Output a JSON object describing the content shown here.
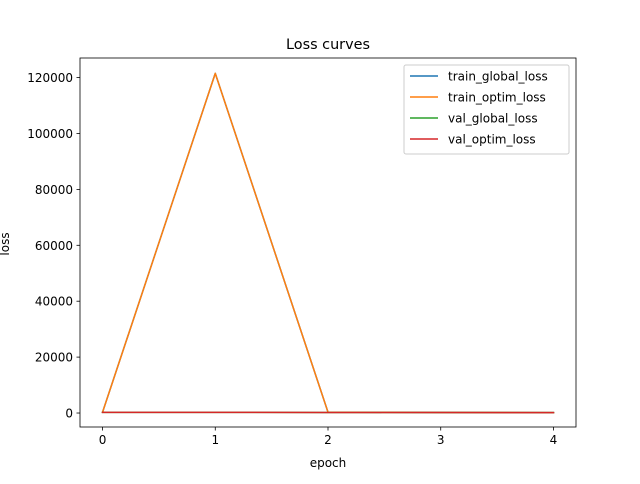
{
  "chart_data": {
    "type": "line",
    "title": "Loss curves",
    "xlabel": "epoch",
    "ylabel": "loss",
    "x": [
      0,
      1,
      2,
      3,
      4
    ],
    "xlim": [
      -0.2,
      4.2
    ],
    "ylim": [
      -5000,
      127000
    ],
    "xticks": [
      0,
      1,
      2,
      3,
      4
    ],
    "yticks": [
      0,
      20000,
      40000,
      60000,
      80000,
      100000,
      120000
    ],
    "grid": false,
    "legend_position": "top-right",
    "series": [
      {
        "name": "train_global_loss",
        "color": "#1f77b4",
        "values": [
          300,
          121500,
          300,
          200,
          150
        ]
      },
      {
        "name": "train_optim_loss",
        "color": "#ff7f0e",
        "values": [
          300,
          121500,
          300,
          200,
          150
        ]
      },
      {
        "name": "val_global_loss",
        "color": "#2ca02c",
        "values": [
          250,
          250,
          200,
          180,
          150
        ]
      },
      {
        "name": "val_optim_loss",
        "color": "#d62728",
        "values": [
          250,
          250,
          200,
          180,
          150
        ]
      }
    ]
  }
}
